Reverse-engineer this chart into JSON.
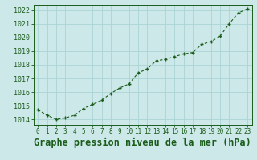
{
  "x": [
    0,
    1,
    2,
    3,
    4,
    5,
    6,
    7,
    8,
    9,
    10,
    11,
    12,
    13,
    14,
    15,
    16,
    17,
    18,
    19,
    20,
    21,
    22,
    23
  ],
  "y": [
    1014.7,
    1014.3,
    1014.0,
    1014.1,
    1014.3,
    1014.8,
    1015.1,
    1015.4,
    1015.9,
    1016.3,
    1016.6,
    1017.4,
    1017.7,
    1018.3,
    1018.4,
    1018.6,
    1018.8,
    1018.9,
    1019.5,
    1019.7,
    1020.1,
    1021.0,
    1021.8,
    1022.1
  ],
  "line_color": "#1a5c1a",
  "marker": "+",
  "bg_color": "#cce8e8",
  "grid_color": "#aad4d4",
  "xlabel": "Graphe pression niveau de la mer (hPa)",
  "xlabel_color": "#1a5c1a",
  "ylabel_ticks": [
    1014,
    1015,
    1016,
    1017,
    1018,
    1019,
    1020,
    1021,
    1022
  ],
  "ylim": [
    1013.6,
    1022.4
  ],
  "xlim": [
    -0.5,
    23.5
  ],
  "tick_color": "#1a5c1a",
  "label_fontsize": 8.5,
  "axis_fontsize": 6.0,
  "xtick_fontsize": 5.5
}
